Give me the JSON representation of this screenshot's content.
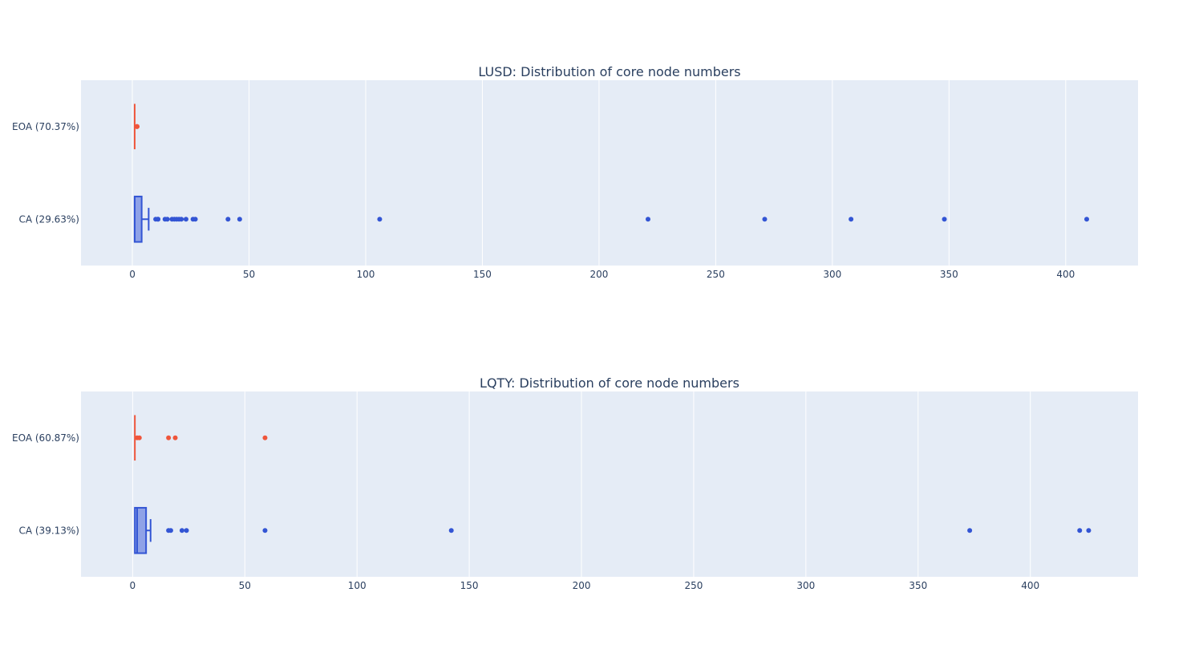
{
  "chart_data": [
    {
      "type": "box",
      "title": "LUSD: Distribution of core node numbers",
      "orientation": "horizontal",
      "xlim": [
        -22,
        431
      ],
      "xticks": [
        0,
        50,
        100,
        150,
        200,
        250,
        300,
        350,
        400
      ],
      "grid": true,
      "legend": "none",
      "series": [
        {
          "name": "EOA (70.37%)",
          "color": "#EF553B",
          "box": {
            "min": 1,
            "q1": 1,
            "median": 1,
            "q3": 1,
            "max": 1
          },
          "outliers": [
            2,
            2,
            2,
            2
          ]
        },
        {
          "name": "CA (29.63%)",
          "color": "#3355d4",
          "box": {
            "min": 1,
            "q1": 1,
            "median": 1,
            "q3": 4,
            "max": 7
          },
          "outliers": [
            10,
            11,
            11,
            14,
            15,
            17,
            18,
            19,
            20,
            21,
            23,
            26,
            27,
            41,
            46,
            106,
            221,
            271,
            308,
            348,
            409
          ]
        }
      ]
    },
    {
      "type": "box",
      "title": "LQTY: Distribution of core node numbers",
      "orientation": "horizontal",
      "xlim": [
        -23,
        448
      ],
      "xticks": [
        0,
        50,
        100,
        150,
        200,
        250,
        300,
        350,
        400
      ],
      "grid": true,
      "legend": "none",
      "series": [
        {
          "name": "EOA (60.87%)",
          "color": "#EF553B",
          "box": {
            "min": 1,
            "q1": 1,
            "median": 1,
            "q3": 1,
            "max": 1
          },
          "outliers": [
            2,
            3,
            16,
            19,
            59
          ]
        },
        {
          "name": "CA (39.13%)",
          "color": "#3355d4",
          "box": {
            "min": 1,
            "q1": 1,
            "median": 2,
            "q3": 6,
            "max": 8
          },
          "outliers": [
            16,
            17,
            22,
            24,
            59,
            142,
            373,
            422,
            426
          ]
        }
      ]
    }
  ]
}
